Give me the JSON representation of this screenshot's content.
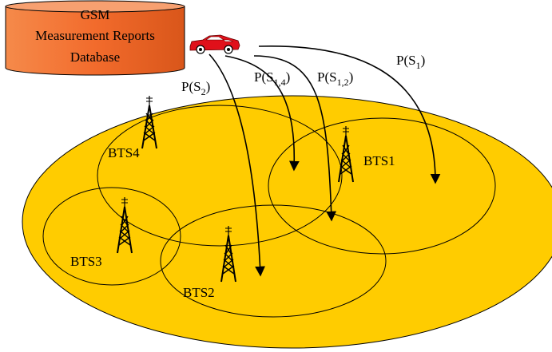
{
  "database": {
    "line1": "GSM",
    "line2": "Measurement Reports",
    "line3": "Database",
    "fill": "#f26b2c"
  },
  "area": {
    "fill": "#ffcc00"
  },
  "stations": [
    {
      "label": "BTS1"
    },
    {
      "label": "BTS2"
    },
    {
      "label": "BTS3"
    },
    {
      "label": "BTS4"
    }
  ],
  "paths": [
    {
      "base": "P(S",
      "sub": "1",
      "close": ")"
    },
    {
      "base": "P(S",
      "sub": "1,2",
      "close": ")"
    },
    {
      "base": "P(S",
      "sub": "1,4",
      "close": ")"
    },
    {
      "base": "P(S",
      "sub": "2",
      "close": ")"
    }
  ],
  "car": {
    "icon": "car-icon",
    "color": "#e0101a"
  }
}
